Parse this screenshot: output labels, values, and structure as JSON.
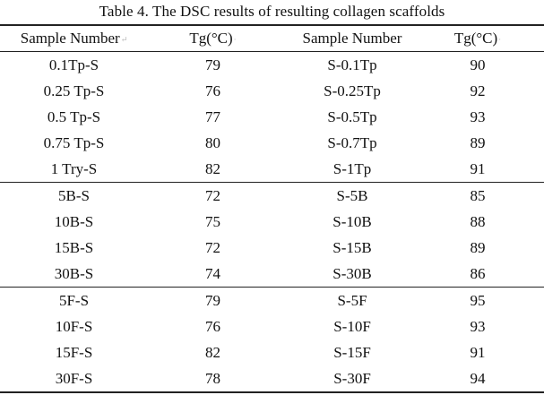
{
  "caption": "Table 4. The DSC results of resulting collagen scaffolds",
  "headers": [
    "Sample Number",
    "Tg(°C)",
    "Sample Number",
    "Tg(°C)"
  ],
  "groups": [
    [
      [
        "0.1Tp-S",
        "79",
        "S-0.1Tp",
        "90"
      ],
      [
        "0.25 Tp-S",
        "76",
        "S-0.25Tp",
        "92"
      ],
      [
        "0.5 Tp-S",
        "77",
        "S-0.5Tp",
        "93"
      ],
      [
        "0.75 Tp-S",
        "80",
        "S-0.7Tp",
        "89"
      ],
      [
        "1 Try-S",
        "82",
        "S-1Tp",
        "91"
      ]
    ],
    [
      [
        "5B-S",
        "72",
        "S-5B",
        "85"
      ],
      [
        "10B-S",
        "75",
        "S-10B",
        "88"
      ],
      [
        "15B-S",
        "72",
        "S-15B",
        "89"
      ],
      [
        "30B-S",
        "74",
        "S-30B",
        "86"
      ]
    ],
    [
      [
        "5F-S",
        "79",
        "S-5F",
        "95"
      ],
      [
        "10F-S",
        "76",
        "S-10F",
        "93"
      ],
      [
        "15F-S",
        "82",
        "S-15F",
        "91"
      ],
      [
        "30F-S",
        "78",
        "S-30F",
        "94"
      ]
    ]
  ]
}
